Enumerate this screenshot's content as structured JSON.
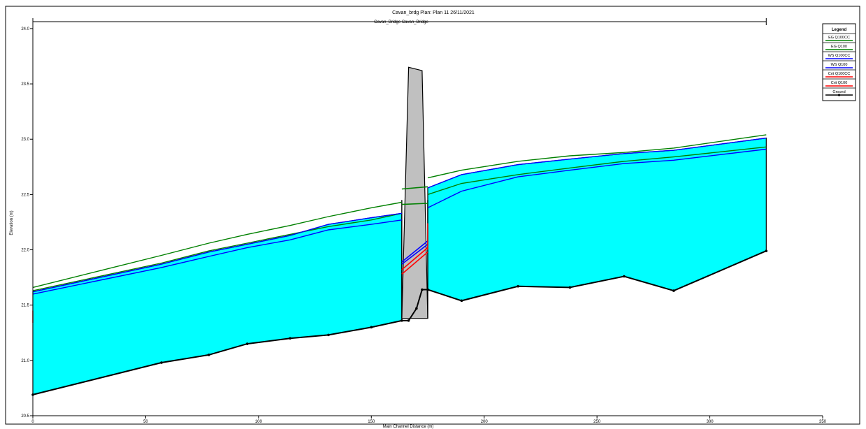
{
  "chart_data": {
    "type": "line",
    "title": "Cavan_brdg      Plan: Plan 11    26/11/2021",
    "subtitle": "Cavan_Bridge Cavan_Bridge",
    "xlabel": "Main Channel Distance (m)",
    "ylabel": "Elevation (m)",
    "xlim": [
      0,
      350
    ],
    "ylim": [
      20.5,
      24.05
    ],
    "x_ticks": [
      "0",
      "50",
      "100",
      "150",
      "200",
      "250",
      "300",
      "350"
    ],
    "y_ticks": [
      "20.5",
      "21.0",
      "21.5",
      "22.0",
      "22.5",
      "23.0",
      "23.5",
      "24.0"
    ],
    "grid": false,
    "legend_position": "top-right",
    "legend_title": "Legend",
    "colors": {
      "water_fill": "#00ffff",
      "eg": "#008000",
      "ws": "#0000ff",
      "crit": "#ff0000",
      "ground": "#000000",
      "bridge_fill": "#c0c0c0"
    },
    "series": [
      {
        "name": "EG  Q100CC",
        "color": "#008000",
        "x": [
          0,
          57,
          78,
          95,
          114,
          131,
          150,
          163.5
        ],
        "y": [
          21.66,
          21.95,
          22.06,
          22.14,
          22.22,
          22.3,
          22.38,
          22.43
        ]
      },
      {
        "name": "EG  Q100CC",
        "color": "#008000",
        "x": [
          175,
          190,
          215,
          238,
          262,
          284,
          325
        ],
        "y": [
          22.65,
          22.72,
          22.8,
          22.85,
          22.88,
          22.92,
          23.04
        ]
      },
      {
        "name": "EG  Q100",
        "color": "#008000",
        "x": [
          0,
          57,
          78,
          95,
          114,
          131,
          150,
          163.5
        ],
        "y": [
          21.63,
          21.88,
          21.99,
          22.06,
          22.14,
          22.21,
          22.27,
          22.33
        ]
      },
      {
        "name": "EG  Q100",
        "color": "#008000",
        "x": [
          175,
          190,
          215,
          238,
          262,
          284,
          325
        ],
        "y": [
          22.5,
          22.6,
          22.68,
          22.74,
          22.8,
          22.84,
          22.93
        ]
      },
      {
        "name": "WS  Q100CC",
        "color": "#0000ff",
        "x": [
          0,
          57,
          78,
          95,
          114,
          131,
          150,
          163.5
        ],
        "y": [
          21.62,
          21.87,
          21.98,
          22.05,
          22.13,
          22.23,
          22.29,
          22.33
        ]
      },
      {
        "name": "WS  Q100CC",
        "color": "#0000ff",
        "x": [
          175,
          190,
          215,
          238,
          262,
          284,
          325
        ],
        "y": [
          22.56,
          22.68,
          22.77,
          22.82,
          22.87,
          22.9,
          23.01
        ]
      },
      {
        "name": "WS  Q100",
        "color": "#0000ff",
        "x": [
          0,
          57,
          78,
          95,
          114,
          131,
          150,
          163.5
        ],
        "y": [
          21.6,
          21.84,
          21.94,
          22.02,
          22.09,
          22.18,
          22.23,
          22.27
        ]
      },
      {
        "name": "WS  Q100",
        "color": "#0000ff",
        "x": [
          175,
          190,
          215,
          238,
          262,
          284,
          325
        ],
        "y": [
          22.38,
          22.53,
          22.66,
          22.72,
          22.78,
          22.81,
          22.91
        ]
      },
      {
        "name": "Ground",
        "color": "#000000",
        "markers": true,
        "x": [
          0,
          57,
          78,
          95,
          114,
          131,
          150,
          163.5,
          166.5,
          170,
          172.5,
          175
        ],
        "y": [
          20.69,
          20.98,
          21.05,
          21.15,
          21.2,
          21.23,
          21.3,
          21.36,
          21.36,
          21.47,
          21.64,
          21.64
        ]
      },
      {
        "name": "Ground",
        "color": "#000000",
        "markers": true,
        "x": [
          175,
          190,
          215,
          238,
          262,
          284,
          325
        ],
        "y": [
          21.64,
          21.54,
          21.67,
          21.66,
          21.76,
          21.63,
          21.99
        ]
      }
    ],
    "bridge_segments": [
      {
        "name": "WS  Q100CC",
        "color": "#0000ff",
        "x": [
          163.5,
          175
        ],
        "y": [
          21.89,
          22.08
        ]
      },
      {
        "name": "WS  Q100",
        "color": "#0000ff",
        "x": [
          163.5,
          175
        ],
        "y": [
          21.87,
          22.05
        ]
      },
      {
        "name": "Crit  Q100CC",
        "color": "#ff0000",
        "x": [
          163.5,
          175
        ],
        "y": [
          21.82,
          22.02
        ]
      },
      {
        "name": "Crit  Q100",
        "color": "#ff0000",
        "x": [
          163.5,
          175
        ],
        "y": [
          21.78,
          21.98
        ]
      },
      {
        "name": "EG  Q100CC",
        "color": "#008000",
        "x": [
          163.5,
          175
        ],
        "y": [
          22.55,
          22.57
        ]
      },
      {
        "name": "EG  Q100",
        "color": "#008000",
        "x": [
          163.5,
          175
        ],
        "y": [
          22.41,
          22.42
        ]
      }
    ],
    "crit_marks": [
      {
        "color": "#ff0000",
        "x": [
          0,
          0
        ],
        "y": [
          21.34,
          21.45
        ]
      },
      {
        "color": "#ff0000",
        "x": [
          175,
          175
        ],
        "y": [
          22.0,
          22.24
        ]
      }
    ],
    "water_left": {
      "x": [
        0,
        57,
        78,
        95,
        114,
        131,
        150,
        163.5
      ],
      "top": [
        21.62,
        21.87,
        21.98,
        22.05,
        22.13,
        22.23,
        22.29,
        22.33
      ],
      "bottom": [
        20.69,
        20.98,
        21.05,
        21.15,
        21.2,
        21.23,
        21.3,
        21.36
      ]
    },
    "water_right": {
      "x": [
        175,
        190,
        215,
        238,
        262,
        284,
        325
      ],
      "top": [
        22.56,
        22.68,
        22.77,
        22.82,
        22.87,
        22.9,
        23.01
      ],
      "bottom": [
        21.64,
        21.54,
        21.67,
        21.66,
        21.76,
        21.63,
        21.99
      ]
    },
    "bridge_deck": {
      "x": [
        163.5,
        166.5,
        172.5,
        175
      ],
      "y": [
        21.38,
        23.65,
        23.62,
        21.38
      ]
    },
    "reach_extent": [
      0,
      325
    ],
    "legend": [
      {
        "label": "EG  Q100CC",
        "color": "#008000",
        "style": "line"
      },
      {
        "label": "EG  Q100",
        "color": "#008000",
        "style": "line"
      },
      {
        "label": "WS  Q100CC",
        "color": "#0000ff",
        "style": "line"
      },
      {
        "label": "WS  Q100",
        "color": "#0000ff",
        "style": "line"
      },
      {
        "label": "Crit  Q100CC",
        "color": "#ff0000",
        "style": "line"
      },
      {
        "label": "Crit  Q100",
        "color": "#ff0000",
        "style": "line"
      },
      {
        "label": "Ground",
        "color": "#000000",
        "style": "line-marker"
      }
    ]
  }
}
